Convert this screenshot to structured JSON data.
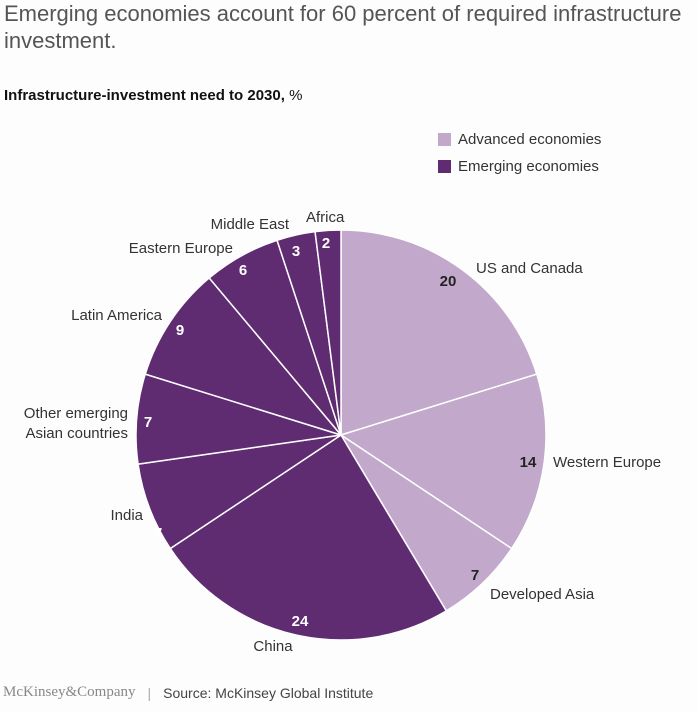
{
  "title": "Emerging economies account for 60 percent of required infrastructure investment.",
  "subtitle_bold": "Infrastructure-investment need to 2030,",
  "subtitle_unit": " %",
  "legend": [
    {
      "label": "Advanced economies",
      "color": "#c2a8cb"
    },
    {
      "label": "Emerging economies",
      "color": "#5f2c72"
    }
  ],
  "chart_data": {
    "type": "pie",
    "title": "Infrastructure-investment need to 2030, %",
    "categories": [
      "US and Canada",
      "Western Europe",
      "Developed Asia",
      "China",
      "India",
      "Other emerging Asian countries",
      "Latin America",
      "Eastern Europe",
      "Middle East",
      "Africa"
    ],
    "values": [
      20,
      14,
      7,
      24,
      7,
      7,
      9,
      6,
      3,
      2
    ],
    "groups": [
      "Advanced economies",
      "Advanced economies",
      "Advanced economies",
      "Emerging economies",
      "Emerging economies",
      "Emerging economies",
      "Emerging economies",
      "Emerging economies",
      "Emerging economies",
      "Emerging economies"
    ],
    "label_lines": [
      [
        "US and Canada"
      ],
      [
        "Western Europe"
      ],
      [
        "Developed Asia"
      ],
      [
        "China"
      ],
      [
        "India"
      ],
      [
        "Other emerging",
        "Asian countries"
      ],
      [
        "Latin America"
      ],
      [
        "Eastern Europe"
      ],
      [
        "Middle East"
      ],
      [
        "Africa"
      ]
    ],
    "legend_position": "top-right"
  },
  "footer": {
    "logo": "McKinsey&Company",
    "separator": "|",
    "source": "Source: McKinsey Global Institute"
  }
}
